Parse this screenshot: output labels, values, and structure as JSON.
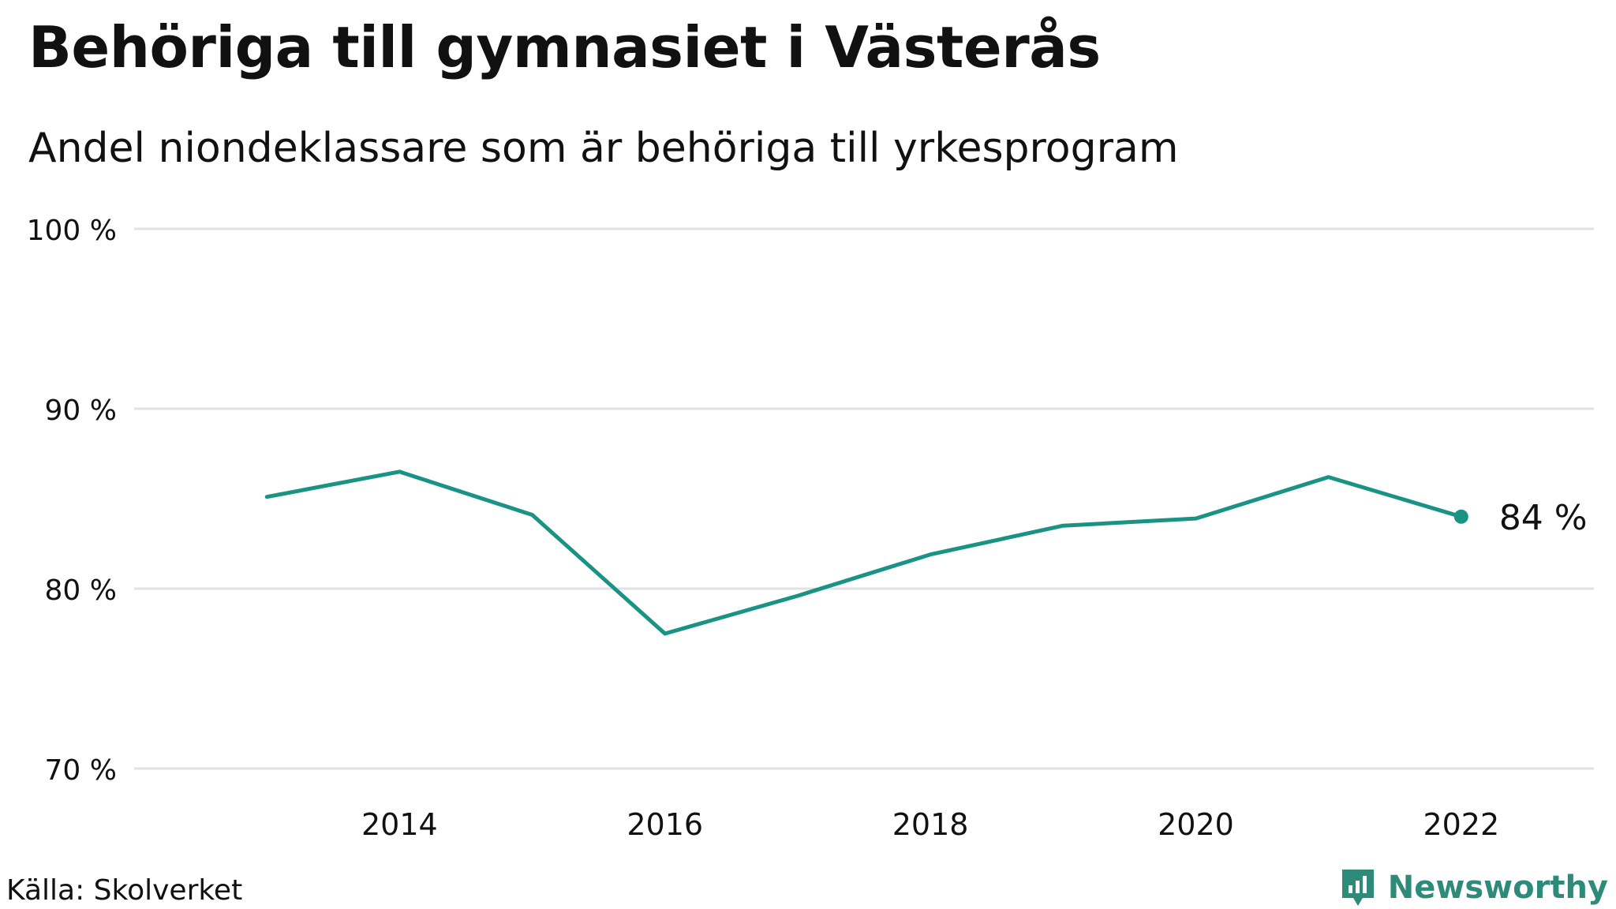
{
  "title": "Behöriga till gymnasiet i Västerås",
  "subtitle": "Andel niondeklassare som är behöriga till yrkesprogram",
  "source": "Källa: Skolverket",
  "brand": {
    "name": "Newsworthy",
    "icon": "newsworthy-logo-icon",
    "color": "#2e8b7a"
  },
  "colors": {
    "line": "#1a9385",
    "grid": "#e1e1e6",
    "text": "#111111"
  },
  "chart_data": {
    "type": "line",
    "title": "Behöriga till gymnasiet i Västerås",
    "subtitle": "Andel niondeklassare som är behöriga till yrkesprogram",
    "xlabel": "",
    "ylabel": "",
    "x": [
      2013,
      2014,
      2015,
      2016,
      2017,
      2018,
      2019,
      2020,
      2021,
      2022
    ],
    "values": [
      85.1,
      86.5,
      84.1,
      77.5,
      79.6,
      81.9,
      83.5,
      83.9,
      86.2,
      84.0
    ],
    "xlim": [
      2012,
      2023
    ],
    "ylim": [
      70,
      100
    ],
    "x_ticks": [
      2014,
      2016,
      2018,
      2020,
      2022
    ],
    "y_ticks": [
      70,
      80,
      90,
      100
    ],
    "y_tick_labels": [
      "70 %",
      "80 %",
      "90 %",
      "100 %"
    ],
    "end_label": "84  %",
    "grid": true,
    "legend": "none"
  }
}
